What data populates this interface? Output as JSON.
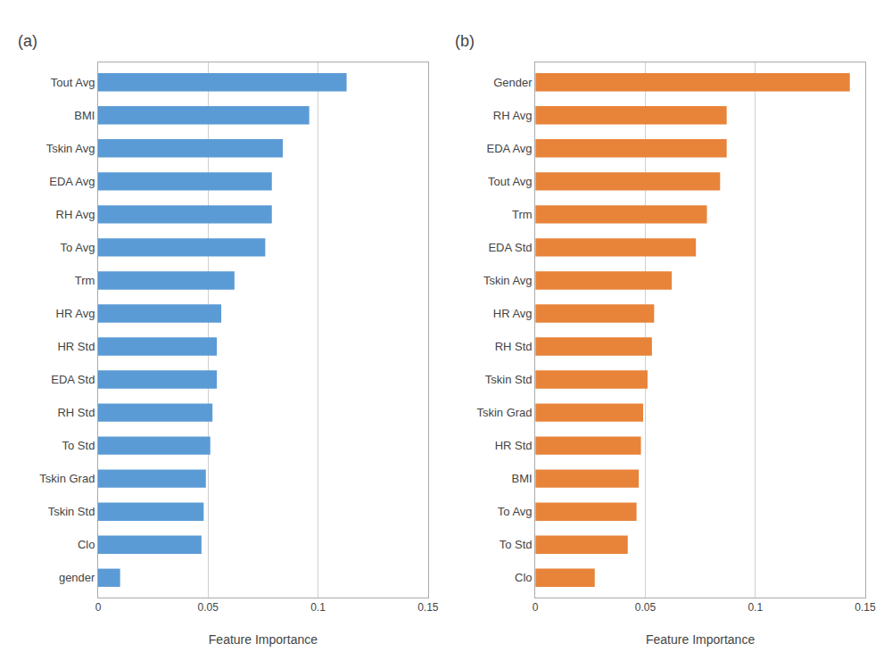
{
  "chart_data": [
    {
      "type": "bar",
      "orientation": "horizontal",
      "title": "(a)",
      "categories": [
        "Tout Avg",
        "BMI",
        "Tskin Avg",
        "EDA Avg",
        "RH Avg",
        "To Avg",
        "Trm",
        "HR Avg",
        "HR Std",
        "EDA Std",
        "RH Std",
        "To Std",
        "Tskin Grad",
        "Tskin Std",
        "Clo",
        "gender"
      ],
      "values": [
        0.113,
        0.096,
        0.084,
        0.079,
        0.079,
        0.076,
        0.062,
        0.056,
        0.054,
        0.054,
        0.052,
        0.051,
        0.049,
        0.048,
        0.047,
        0.01
      ],
      "color": "#5B9BD5",
      "xlabel": "Feature Importance",
      "xlim": [
        0,
        0.15
      ],
      "xticks": [
        0,
        0.05,
        0.1,
        0.15
      ],
      "grid": true
    },
    {
      "type": "bar",
      "orientation": "horizontal",
      "title": "(b)",
      "categories": [
        "Gender",
        "RH Avg",
        "EDA Avg",
        "Tout Avg",
        "Trm",
        "EDA Std",
        "Tskin Avg",
        "HR Avg",
        "RH Std",
        "Tskin Std",
        "Tskin Grad",
        "HR Std",
        "BMI",
        "To Avg",
        "To Std",
        "Clo"
      ],
      "values": [
        0.143,
        0.087,
        0.087,
        0.084,
        0.078,
        0.073,
        0.062,
        0.054,
        0.053,
        0.051,
        0.049,
        0.048,
        0.047,
        0.046,
        0.042,
        0.027
      ],
      "color": "#E8833A",
      "xlabel": "Feature Importance",
      "xlim": [
        0,
        0.15
      ],
      "xticks": [
        0,
        0.05,
        0.1,
        0.15
      ],
      "grid": true
    }
  ]
}
